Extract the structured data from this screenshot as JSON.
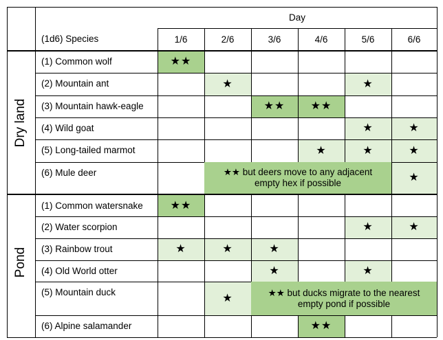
{
  "header": {
    "day_title": "Day",
    "species_title": "(1d6) Species",
    "days": [
      "1/6",
      "2/6",
      "3/6",
      "4/6",
      "5/6",
      "6/6"
    ]
  },
  "colors": {
    "light_green": "#e2f0d9",
    "dark_green": "#a9d18e"
  },
  "dry_land": {
    "label": "Dry land",
    "species": [
      "(1) Common wolf",
      "(2) Mountain ant",
      "(3) Mountain hawk-eagle",
      "(4) Wild goat",
      "(5) Long-tailed marmot",
      "(6) Mule deer"
    ],
    "stars": [
      [
        "★★",
        "",
        "",
        "",
        "",
        ""
      ],
      [
        "",
        "★",
        "",
        "",
        "★",
        ""
      ],
      [
        "",
        "",
        "★★",
        "★★",
        "",
        ""
      ],
      [
        "",
        "",
        "",
        "",
        "★",
        "★"
      ],
      [
        "",
        "",
        "",
        "★",
        "★",
        "★"
      ],
      [
        "",
        "",
        "",
        "",
        "",
        "★"
      ]
    ],
    "note": "★★ but deers move to any adjacent empty hex if possible"
  },
  "pond": {
    "label": "Pond",
    "species": [
      "(1) Common watersnake",
      "(2) Water scorpion",
      "(3) Rainbow trout",
      "(4) Old World otter",
      "(5) Mountain duck",
      "(6) Alpine salamander"
    ],
    "stars": [
      [
        "★★",
        "",
        "",
        "",
        "",
        ""
      ],
      [
        "",
        "",
        "",
        "",
        "★",
        "★"
      ],
      [
        "★",
        "★",
        "★",
        "",
        "",
        ""
      ],
      [
        "",
        "",
        "★",
        "",
        "★",
        ""
      ],
      [
        "",
        "★",
        "",
        "",
        "",
        ""
      ],
      [
        "",
        "",
        "",
        "★★",
        "",
        ""
      ]
    ],
    "note": "★★ but ducks migrate to the nearest empty pond if possible"
  }
}
